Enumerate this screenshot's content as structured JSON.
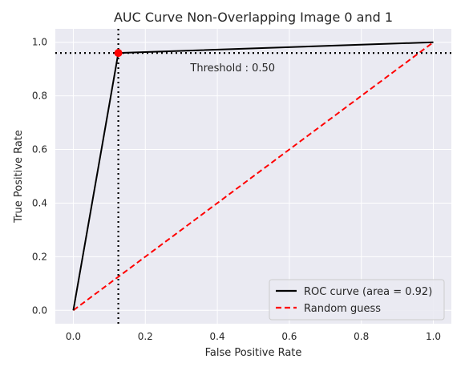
{
  "chart_data": {
    "type": "line",
    "title": "AUC Curve Non-Overlapping Image 0 and 1",
    "xlabel": "False Positive Rate",
    "ylabel": "True Positive Rate",
    "xlim": [
      -0.05,
      1.05
    ],
    "ylim": [
      -0.05,
      1.05
    ],
    "xticks": [
      0.0,
      0.2,
      0.4,
      0.6,
      0.8,
      1.0
    ],
    "xtick_labels": [
      "0.0",
      "0.2",
      "0.4",
      "0.6",
      "0.8",
      "1.0"
    ],
    "yticks": [
      0.0,
      0.2,
      0.4,
      0.6,
      0.8,
      1.0
    ],
    "ytick_labels": [
      "0.0",
      "0.2",
      "0.4",
      "0.6",
      "0.8",
      "1.0"
    ],
    "grid": true,
    "legend_position": "lower-right",
    "series": [
      {
        "name": "ROC curve (area = 0.92)",
        "color": "#000000",
        "style": "solid",
        "x": [
          0.0,
          0.125,
          1.0
        ],
        "y": [
          0.0,
          0.96,
          1.0
        ]
      },
      {
        "name": "Random guess",
        "color": "#ff0000",
        "style": "dashed",
        "x": [
          0.0,
          1.0
        ],
        "y": [
          0.0,
          1.0
        ]
      }
    ],
    "threshold_point": {
      "x": 0.125,
      "y": 0.96,
      "color": "#ff0000"
    },
    "annotation": {
      "text": "Threshold : 0.50",
      "x": 0.325,
      "y": 0.93
    }
  }
}
